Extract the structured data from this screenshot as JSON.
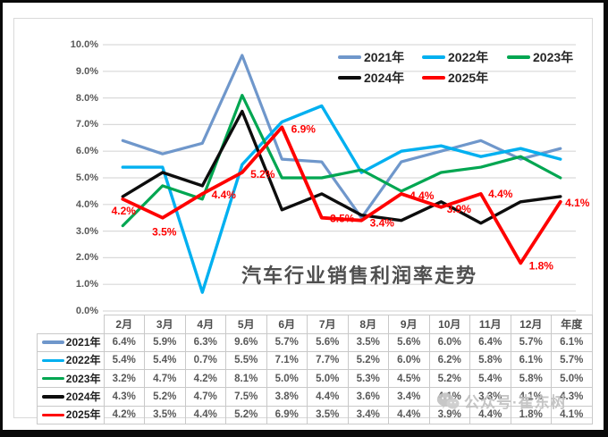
{
  "title": "汽车行业销售利润率走势",
  "watermark": {
    "icon": "wechat-icon",
    "text": "公众号·崔东树"
  },
  "colors": {
    "series_2021": "#6f97cb",
    "series_2022": "#00b0f0",
    "series_2023": "#00a651",
    "series_2024": "#0d0d0d",
    "series_2025": "#fe0000",
    "gridline": "#d9d9d9",
    "axis_text": "#595959",
    "table_border": "#c9c9c9",
    "panel_border": "#d9d9d9",
    "frame": "#0a0a0a",
    "watermark_gray": "#c1c1c1",
    "title_gray": "#4f4f4f",
    "data_label_red": "#fe0000"
  },
  "chart_data": {
    "type": "line",
    "title": "汽车行业销售利润率走势",
    "categories": [
      "2月",
      "3月",
      "4月",
      "5月",
      "6月",
      "7月",
      "8月",
      "9月",
      "10月",
      "11月",
      "12月",
      "年度"
    ],
    "series": [
      {
        "name": "2021年",
        "color": "#6f97cb",
        "values": [
          6.4,
          5.9,
          6.3,
          9.6,
          5.7,
          5.6,
          3.5,
          5.6,
          6.0,
          6.4,
          5.7,
          6.1
        ]
      },
      {
        "name": "2022年",
        "color": "#00b0f0",
        "values": [
          5.4,
          5.4,
          0.7,
          5.5,
          7.1,
          7.7,
          5.2,
          6.0,
          6.2,
          5.8,
          6.1,
          5.7
        ]
      },
      {
        "name": "2023年",
        "color": "#00a651",
        "values": [
          3.2,
          4.7,
          4.2,
          8.1,
          5.0,
          5.0,
          5.3,
          4.5,
          5.2,
          5.4,
          5.8,
          5.0
        ]
      },
      {
        "name": "2024年",
        "color": "#0d0d0d",
        "values": [
          4.3,
          5.2,
          4.7,
          7.5,
          3.8,
          4.4,
          3.6,
          3.4,
          4.1,
          3.3,
          4.1,
          4.3
        ]
      },
      {
        "name": "2025年",
        "color": "#fe0000",
        "values": [
          4.2,
          3.5,
          4.4,
          5.2,
          6.9,
          3.5,
          3.4,
          4.4,
          3.9,
          4.4,
          1.8,
          4.1
        ],
        "data_labels": [
          "4.2%",
          "3.5%",
          "4.4%",
          "5.2%",
          "6.9%",
          "3.5%",
          "3.4%",
          "4.4%",
          "3.9%",
          "4.4%",
          "1.8%",
          "4.1%"
        ]
      }
    ],
    "ylim": [
      0,
      10
    ],
    "ytick_labels": [
      "10.0%",
      "9.0%",
      "8.0%",
      "7.0%",
      "6.0%",
      "5.0%",
      "4.0%",
      "3.0%",
      "2.0%",
      "1.0%",
      "0.0%"
    ],
    "grid": true,
    "legend_position": "top-right-two-rows",
    "legend_entries": [
      "2021年",
      "2022年",
      "2023年",
      "2024年",
      "2025年"
    ],
    "data_table": true,
    "value_format": "percent_1dp"
  }
}
